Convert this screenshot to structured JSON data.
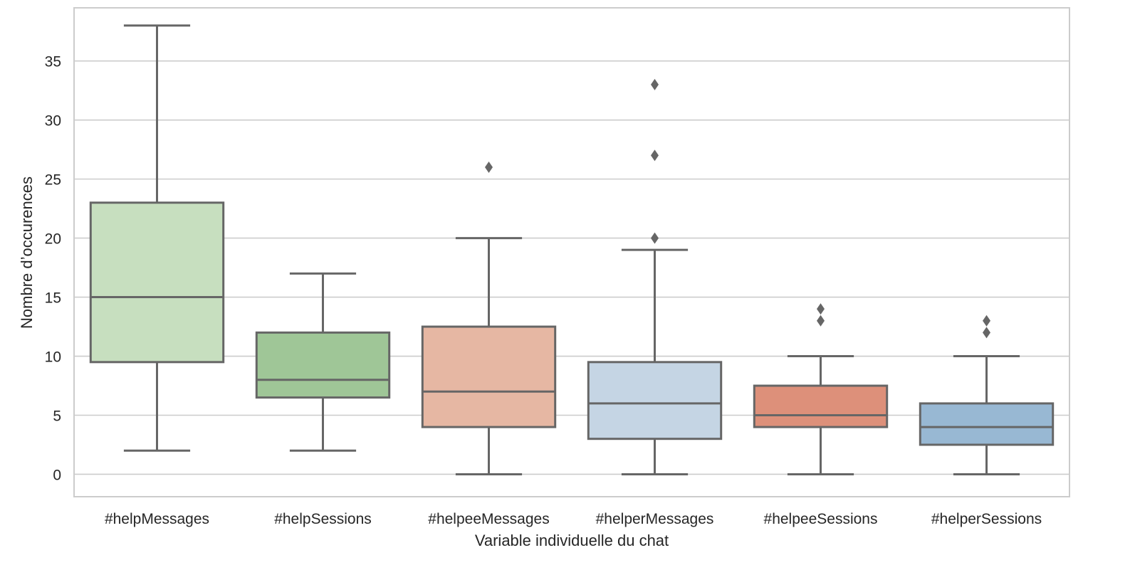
{
  "chart_data": {
    "type": "box",
    "title": "",
    "xlabel": "Variable individuelle du chat",
    "ylabel": "Nombre d’occurences",
    "ylim": [
      -1.9,
      39.5
    ],
    "yticks": [
      0,
      5,
      10,
      15,
      20,
      25,
      30,
      35
    ],
    "grid": "horizontal",
    "legend": "none",
    "categories": [
      "#helpMessages",
      "#helpSessions",
      "#helpeeMessages",
      "#helperMessages",
      "#helpeeSessions",
      "#helperSessions"
    ],
    "boxes": [
      {
        "category": "#helpMessages",
        "whisker_low": 2,
        "q1": 9.5,
        "median": 15,
        "q3": 23,
        "whisker_high": 38,
        "outliers": [],
        "color": "#c7dfbf"
      },
      {
        "category": "#helpSessions",
        "whisker_low": 2,
        "q1": 6.5,
        "median": 8,
        "q3": 12,
        "whisker_high": 17,
        "outliers": [],
        "color": "#9fc697"
      },
      {
        "category": "#helpeeMessages",
        "whisker_low": 0,
        "q1": 4,
        "median": 7,
        "q3": 12.5,
        "whisker_high": 20,
        "outliers": [
          26
        ],
        "color": "#e6b7a3"
      },
      {
        "category": "#helperMessages",
        "whisker_low": 0,
        "q1": 3,
        "median": 6,
        "q3": 9.5,
        "whisker_high": 19,
        "outliers": [
          20,
          27,
          33
        ],
        "color": "#c5d5e4"
      },
      {
        "category": "#helpeeSessions",
        "whisker_low": 0,
        "q1": 4,
        "median": 5,
        "q3": 7.5,
        "whisker_high": 10,
        "outliers": [
          13,
          14
        ],
        "color": "#dd907a"
      },
      {
        "category": "#helperSessions",
        "whisker_low": 0,
        "q1": 2.5,
        "median": 4,
        "q3": 6,
        "whisker_high": 10,
        "outliers": [
          12,
          13
        ],
        "color": "#98b8d3"
      }
    ],
    "colors": {
      "line": "#666666",
      "grid": "#cccccc",
      "frame": "#cccccc"
    }
  }
}
